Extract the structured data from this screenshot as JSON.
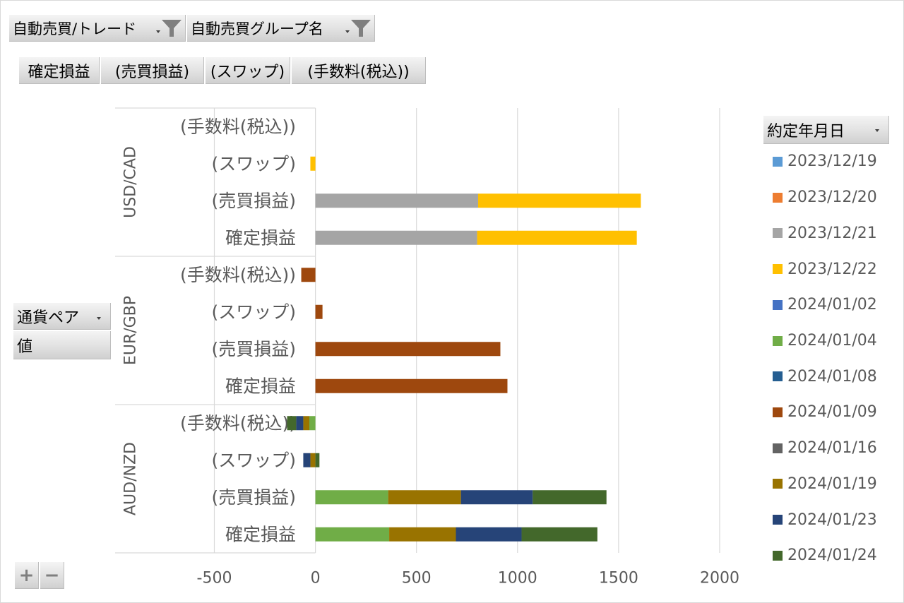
{
  "pivot_filters": [
    {
      "label": "自動売買/トレード",
      "icon": "funnel-filter-icon"
    },
    {
      "label": "自動売買グループ名",
      "icon": "funnel-filter-icon"
    }
  ],
  "value_fields": [
    "確定損益",
    "(売買損益)",
    "(スワップ)",
    "(手数料(税込))"
  ],
  "axis_fields": [
    "通貨ペア",
    "値"
  ],
  "zoom_buttons": {
    "expand": "+",
    "collapse": "−"
  },
  "chart_data": {
    "type": "bar",
    "orientation": "horizontal",
    "stacked": true,
    "groups": [
      "USD/CAD",
      "EUR/GBP",
      "AUD/NZD"
    ],
    "categories": [
      "(手数料(税込))",
      "(スワップ)",
      "(売買損益)",
      "確定損益"
    ],
    "xlim": [
      -500,
      2000
    ],
    "xticks": [
      -500,
      0,
      500,
      1000,
      1500,
      2000
    ],
    "grid": true,
    "legend_title": "約定年月日",
    "legend_position": "right",
    "series": [
      {
        "name": "2023/12/19",
        "color": "#5B9BD5",
        "values": [
          [
            null,
            null,
            null,
            null
          ],
          [
            null,
            null,
            null,
            null
          ],
          [
            null,
            null,
            null,
            null
          ]
        ]
      },
      {
        "name": "2023/12/20",
        "color": "#ED7D31",
        "values": [
          [
            null,
            null,
            null,
            null
          ],
          [
            null,
            null,
            null,
            null
          ],
          [
            null,
            null,
            null,
            null
          ]
        ]
      },
      {
        "name": "2023/12/21",
        "color": "#A5A5A5",
        "values": [
          [
            null,
            null,
            805,
            800
          ],
          [
            null,
            null,
            null,
            null
          ],
          [
            null,
            null,
            null,
            null
          ]
        ]
      },
      {
        "name": "2023/12/22",
        "color": "#FFC000",
        "values": [
          [
            null,
            -25,
            805,
            790
          ],
          [
            null,
            null,
            null,
            null
          ],
          [
            null,
            null,
            null,
            null
          ]
        ]
      },
      {
        "name": "2024/01/02",
        "color": "#4472C4",
        "values": [
          [
            null,
            null,
            null,
            null
          ],
          [
            null,
            null,
            null,
            null
          ],
          [
            null,
            null,
            null,
            null
          ]
        ]
      },
      {
        "name": "2024/01/04",
        "color": "#70AD47",
        "values": [
          [
            null,
            null,
            null,
            null
          ],
          [
            null,
            null,
            null,
            null
          ],
          [
            -30,
            null,
            360,
            365
          ]
        ]
      },
      {
        "name": "2024/01/08",
        "color": "#255E91",
        "values": [
          [
            null,
            null,
            null,
            null
          ],
          [
            null,
            null,
            null,
            null
          ],
          [
            null,
            null,
            null,
            null
          ]
        ]
      },
      {
        "name": "2024/01/09",
        "color": "#9E480E",
        "values": [
          [
            null,
            null,
            null,
            null
          ],
          [
            -70,
            35,
            915,
            950
          ],
          [
            null,
            null,
            null,
            null
          ]
        ]
      },
      {
        "name": "2024/01/16",
        "color": "#636363",
        "values": [
          [
            null,
            null,
            null,
            null
          ],
          [
            null,
            null,
            null,
            null
          ],
          [
            null,
            null,
            null,
            null
          ]
        ]
      },
      {
        "name": "2024/01/19",
        "color": "#997300",
        "values": [
          [
            null,
            null,
            null,
            null
          ],
          [
            null,
            null,
            null,
            null
          ],
          [
            -30,
            -25,
            360,
            330
          ]
        ]
      },
      {
        "name": "2024/01/23",
        "color": "#264478",
        "values": [
          [
            null,
            null,
            null,
            null
          ],
          [
            null,
            null,
            null,
            null
          ],
          [
            -35,
            -35,
            355,
            325
          ]
        ]
      },
      {
        "name": "2024/01/24",
        "color": "#43682B",
        "values": [
          [
            null,
            null,
            null,
            null
          ],
          [
            null,
            null,
            null,
            null
          ],
          [
            -45,
            20,
            365,
            375
          ]
        ]
      }
    ]
  }
}
